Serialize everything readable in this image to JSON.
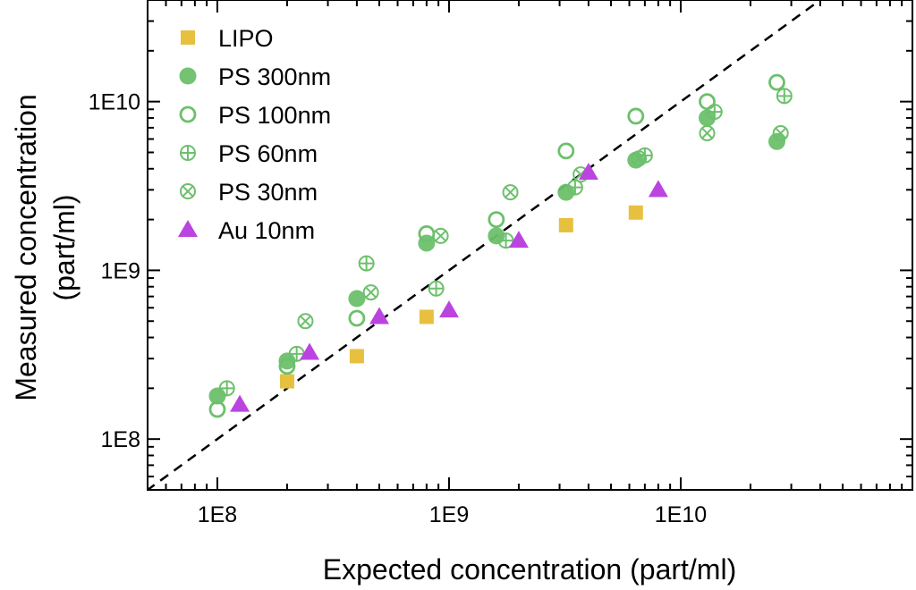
{
  "chart_data": {
    "type": "scatter",
    "xlabel": "Expected concentration (part/ml)",
    "ylabel_lines": [
      "Measured concentration",
      "(part/ml)"
    ],
    "xscale": "log",
    "yscale": "log",
    "xlim": [
      50000000.0,
      100000000000.0
    ],
    "ylim": [
      50000000.0,
      40000000000.0
    ],
    "x_ticks": [
      {
        "value": 100000000.0,
        "label": "1E8"
      },
      {
        "value": 1000000000.0,
        "label": "1E9"
      },
      {
        "value": 10000000000.0,
        "label": "1E10"
      }
    ],
    "y_ticks": [
      {
        "value": 100000000.0,
        "label": "1E8"
      },
      {
        "value": 1000000000.0,
        "label": "1E9"
      },
      {
        "value": 10000000000.0,
        "label": "1E10"
      }
    ],
    "grid": false,
    "legend_position": "top-left",
    "reference_line": {
      "style": "dashed",
      "color": "#000000",
      "relation": "y = x"
    },
    "series": [
      {
        "name": "LIPO",
        "marker": "square",
        "color": "#E8C040",
        "points": [
          [
            200000000.0,
            220000000.0
          ],
          [
            400000000.0,
            310000000.0
          ],
          [
            800000000.0,
            530000000.0
          ],
          [
            3200000000.0,
            1850000000.0
          ],
          [
            6400000000.0,
            2200000000.0
          ]
        ]
      },
      {
        "name": "PS 300nm",
        "marker": "filled-circle",
        "color": "#6CC06C",
        "points": [
          [
            100000000.0,
            180000000.0
          ],
          [
            200000000.0,
            290000000.0
          ],
          [
            400000000.0,
            680000000.0
          ],
          [
            800000000.0,
            1450000000.0
          ],
          [
            1600000000.0,
            1600000000.0
          ],
          [
            3200000000.0,
            2900000000.0
          ],
          [
            6400000000.0,
            4500000000.0
          ],
          [
            13000000000.0,
            8000000000.0
          ],
          [
            26000000000.0,
            5800000000.0
          ]
        ]
      },
      {
        "name": "PS 100nm",
        "marker": "open-circle",
        "color": "#6CC06C",
        "points": [
          [
            100000000.0,
            150000000.0
          ],
          [
            200000000.0,
            270000000.0
          ],
          [
            400000000.0,
            520000000.0
          ],
          [
            800000000.0,
            1650000000.0
          ],
          [
            1600000000.0,
            2000000000.0
          ],
          [
            3200000000.0,
            5100000000.0
          ],
          [
            6400000000.0,
            8200000000.0
          ],
          [
            13000000000.0,
            10000000000.0
          ],
          [
            26000000000.0,
            13000000000.0
          ]
        ]
      },
      {
        "name": "PS 60nm",
        "marker": "circle-plus",
        "color": "#6CC06C",
        "points": [
          [
            110000000.0,
            200000000.0
          ],
          [
            220000000.0,
            320000000.0
          ],
          [
            440000000.0,
            1100000000.0
          ],
          [
            880000000.0,
            780000000.0
          ],
          [
            1760000000.0,
            1500000000.0
          ],
          [
            3500000000.0,
            3100000000.0
          ],
          [
            7000000000.0,
            4800000000.0
          ],
          [
            14000000000.0,
            8700000000.0
          ],
          [
            28000000000.0,
            10800000000.0
          ]
        ]
      },
      {
        "name": "PS 30nm",
        "marker": "circle-x",
        "color": "#6CC06C",
        "points": [
          [
            240000000.0,
            500000000.0
          ],
          [
            460000000.0,
            740000000.0
          ],
          [
            920000000.0,
            1600000000.0
          ],
          [
            1840000000.0,
            2900000000.0
          ],
          [
            3700000000.0,
            3700000000.0
          ],
          [
            6600000000.0,
            4600000000.0
          ],
          [
            13000000000.0,
            6500000000.0
          ],
          [
            27000000000.0,
            6500000000.0
          ]
        ]
      },
      {
        "name": "Au 10nm",
        "marker": "triangle",
        "color": "#BB44E0",
        "points": [
          [
            125000000.0,
            160000000.0
          ],
          [
            250000000.0,
            325000000.0
          ],
          [
            500000000.0,
            530000000.0
          ],
          [
            1000000000.0,
            580000000.0
          ],
          [
            2000000000.0,
            1500000000.0
          ],
          [
            4000000000.0,
            3800000000.0
          ],
          [
            8000000000.0,
            3000000000.0
          ]
        ]
      }
    ]
  }
}
